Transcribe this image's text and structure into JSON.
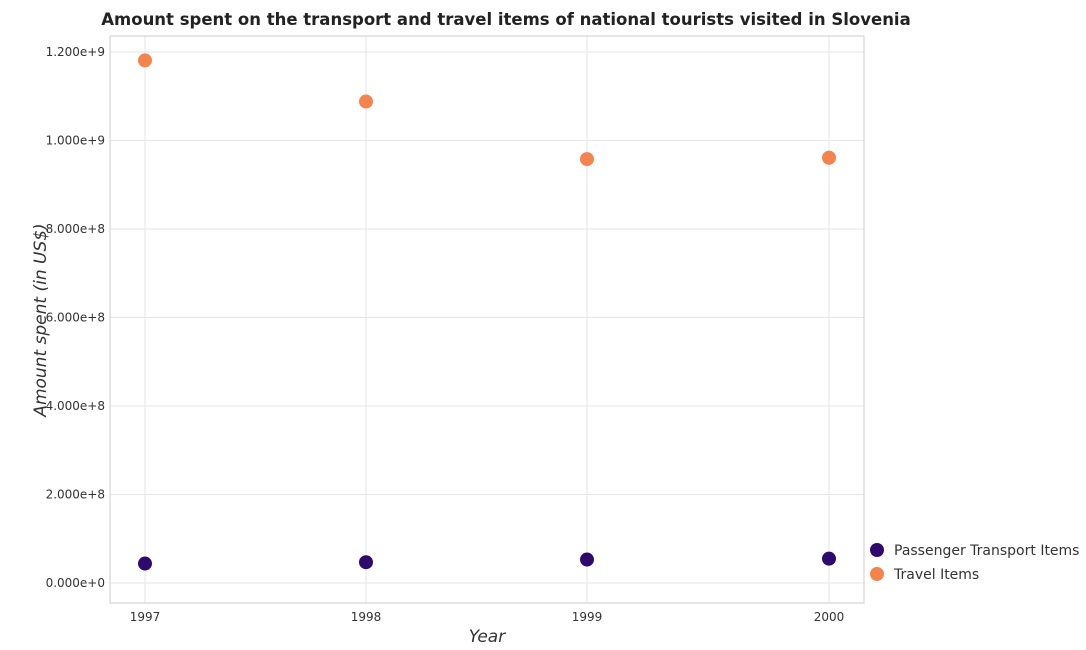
{
  "chart_data": {
    "type": "scatter",
    "title": "Amount spent on the transport and travel items of national tourists visited in Slovenia",
    "xlabel": "Year",
    "ylabel": "Amount spent (in US$)",
    "categories": [
      "1997",
      "1998",
      "1999",
      "2000"
    ],
    "ylim": [
      0,
      1300000000
    ],
    "yticks": [
      {
        "value": 0,
        "label": "0.000e+0"
      },
      {
        "value": 200000000,
        "label": "2.000e+8"
      },
      {
        "value": 400000000,
        "label": "4.000e+8"
      },
      {
        "value": 600000000,
        "label": "6.000e+8"
      },
      {
        "value": 800000000,
        "label": "8.000e+8"
      },
      {
        "value": 1000000000,
        "label": "1.000e+9"
      },
      {
        "value": 1200000000,
        "label": "1.200e+9"
      }
    ],
    "grid": true,
    "legend_position": "bottom-right",
    "series": [
      {
        "name": "Passenger Transport Items",
        "color": "#2d0a6b",
        "values": [
          44000000,
          47000000,
          53000000,
          55000000
        ]
      },
      {
        "name": "Travel Items",
        "color": "#f4844e",
        "values": [
          1181000000,
          1088000000,
          958000000,
          961000000
        ]
      }
    ]
  }
}
